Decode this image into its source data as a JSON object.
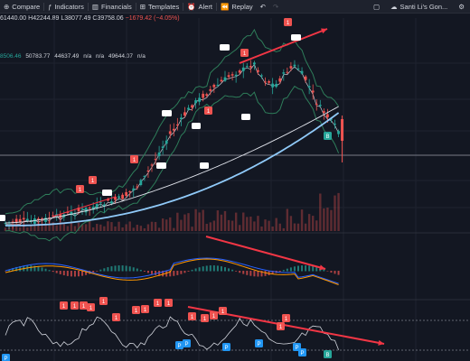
{
  "toolbar": {
    "partial_label": "",
    "compare_label": "Compare",
    "indicators_label": "Indicators",
    "financials_label": "Financials",
    "templates_label": "Templates",
    "alert_label": "Alert",
    "replay_label": "Replay",
    "layout_name": "Santi Li's Gon..."
  },
  "legend": {
    "ohlc_prefix": "61440.00",
    "high": "H42244.89",
    "low": "L38077.49",
    "close": "C39758.06",
    "change": "−1679.42 (−4.05%)"
  },
  "ma_values": {
    "v1": "8506.46",
    "v2": "50783.77",
    "v3": "44637.49",
    "v4": "n/a",
    "v5": "n/a",
    "v6": "49644.07",
    "v7": "n/a"
  },
  "markers": {
    "red_label": "1",
    "blue_label": "P",
    "green_label": "B"
  },
  "colors": {
    "background": "#131722",
    "bull": "#26a69a",
    "bear": "#ef5350",
    "bb_band": "#2e7d5a",
    "ma_blue": "#90caf9",
    "arrow_red": "#f23645"
  },
  "icons": [
    "plus-icon",
    "indicators-icon",
    "financials-icon",
    "templates-icon",
    "alert-icon",
    "replay-icon",
    "undo-icon",
    "redo-icon",
    "square-icon",
    "cloud-icon",
    "gear-icon"
  ]
}
